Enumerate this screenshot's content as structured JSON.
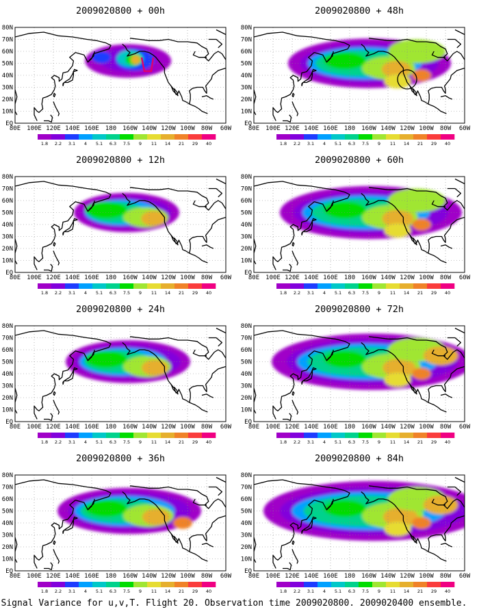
{
  "caption": "Signal Variance for u,v,T. Flight 20. Observation time 2009020800. 2009020400 ensemble.",
  "lon_labels": [
    "80E",
    "100E",
    "120E",
    "140E",
    "160E",
    "180",
    "160W",
    "140W",
    "120W",
    "100W",
    "80W",
    "60W"
  ],
  "lat_labels": [
    "80N",
    "70N",
    "60N",
    "50N",
    "40N",
    "30N",
    "20N",
    "10N",
    "EQ"
  ],
  "colorbar": {
    "labels": [
      "1.8",
      "2.2",
      "3.1",
      "4",
      "5.1",
      "6.3",
      "7.5",
      "9",
      "11",
      "14",
      "21",
      "29",
      "40"
    ],
    "colors": [
      "#a000c8",
      "#8200dc",
      "#1e3cff",
      "#00a0ff",
      "#00c8c8",
      "#00d28c",
      "#00dc00",
      "#a0e632",
      "#e6dc32",
      "#e6af2d",
      "#f08228",
      "#fa3c3c",
      "#f00082"
    ]
  },
  "panels": [
    {
      "title": "2009020800 + 00h",
      "lead_hours": 0
    },
    {
      "title": "2009020800 + 48h",
      "lead_hours": 48
    },
    {
      "title": "2009020800 + 12h",
      "lead_hours": 12
    },
    {
      "title": "2009020800 + 60h",
      "lead_hours": 60
    },
    {
      "title": "2009020800 + 24h",
      "lead_hours": 24
    },
    {
      "title": "2009020800 + 72h",
      "lead_hours": 72
    },
    {
      "title": "2009020800 + 36h",
      "lead_hours": 36
    },
    {
      "title": "2009020800 + 84h",
      "lead_hours": 84
    }
  ]
}
